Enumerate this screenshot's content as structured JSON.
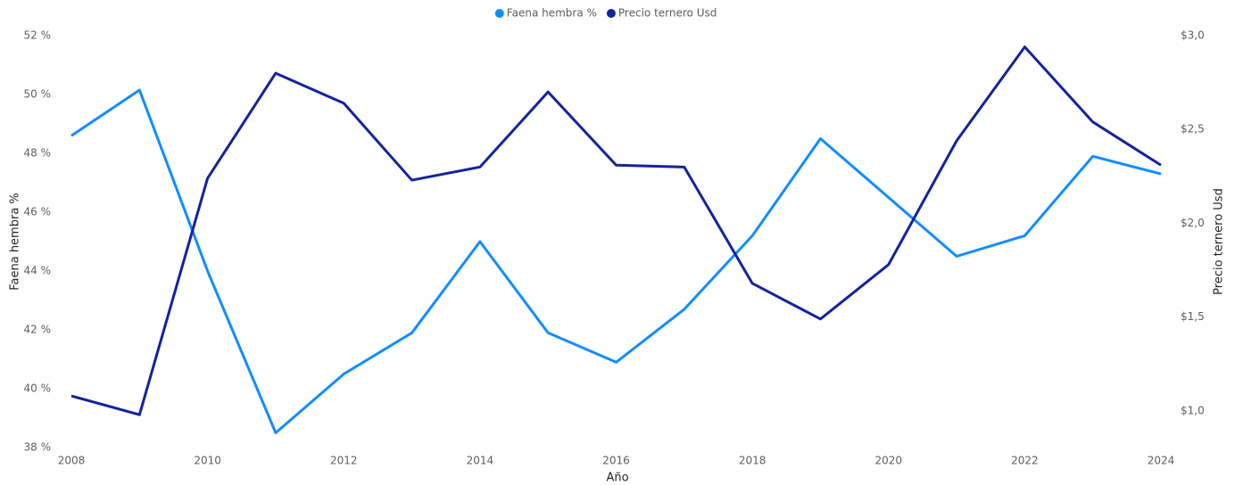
{
  "chart_data": {
    "type": "line",
    "x": [
      2008,
      2009,
      2010,
      2011,
      2012,
      2013,
      2014,
      2015,
      2016,
      2017,
      2018,
      2019,
      2020,
      2021,
      2022,
      2023,
      2024
    ],
    "series": [
      {
        "name": "Faena hembra %",
        "color": "#118dff",
        "values": [
          48.6,
          50.15,
          44.0,
          38.5,
          40.5,
          41.9,
          45.0,
          41.9,
          40.9,
          42.7,
          45.2,
          48.5,
          46.5,
          44.5,
          45.2,
          47.9,
          47.3
        ]
      },
      {
        "name": "Precio ternero Usd",
        "color": "#12239e",
        "axis": "y2",
        "values": [
          1.08,
          0.98,
          2.24,
          2.8,
          2.64,
          2.23,
          2.3,
          2.7,
          2.31,
          2.3,
          1.68,
          1.49,
          1.78,
          2.44,
          2.94,
          2.54,
          2.31
        ]
      }
    ],
    "xlabel": "Año",
    "ylabel": "Faena hembra %",
    "y2label": "Precio ternero Usd",
    "xlim": [
      2008,
      2024
    ],
    "xticks": [
      2008,
      2010,
      2012,
      2014,
      2016,
      2018,
      2020,
      2022,
      2024
    ],
    "ylim": [
      38,
      52
    ],
    "yticks": [
      {
        "value": 38,
        "label": "38 %"
      },
      {
        "value": 40,
        "label": "40 %"
      },
      {
        "value": 42,
        "label": "42 %"
      },
      {
        "value": 44,
        "label": "44 %"
      },
      {
        "value": 46,
        "label": "46 %"
      },
      {
        "value": 48,
        "label": "48 %"
      },
      {
        "value": 50,
        "label": "50 %"
      },
      {
        "value": 52,
        "label": "52 %"
      }
    ],
    "y2lim": [
      0.805,
      3.0
    ],
    "y2ticks": [
      {
        "value": 1.0,
        "label": "$1,0"
      },
      {
        "value": 1.5,
        "label": "$1,5"
      },
      {
        "value": 2.0,
        "label": "$2,0"
      },
      {
        "value": 2.5,
        "label": "$2,5"
      },
      {
        "value": 3.0,
        "label": "$3,0"
      }
    ],
    "legend": "top"
  }
}
